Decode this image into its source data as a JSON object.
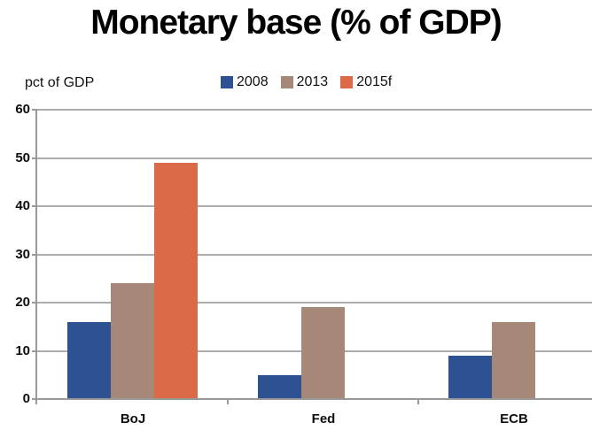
{
  "title": "Monetary base (% of GDP)",
  "axis_unit_label": "pct of GDP",
  "chart_data": {
    "type": "bar",
    "title": "Monetary base (% of GDP)",
    "ylabel": "pct of GDP",
    "categories": [
      "BoJ",
      "Fed",
      "ECB"
    ],
    "series": [
      {
        "name": "2008",
        "color": "#2E5291",
        "values": [
          16,
          5,
          9
        ]
      },
      {
        "name": "2013",
        "color": "#A68878",
        "values": [
          24,
          19,
          16
        ]
      },
      {
        "name": "2015f",
        "color": "#DB6A49",
        "values": [
          49,
          null,
          null
        ]
      }
    ],
    "ylim": [
      0,
      60
    ],
    "yticks": [
      0,
      10,
      20,
      30,
      40,
      50,
      60
    ],
    "grid": true,
    "legend_position": "top-center"
  },
  "colors": {
    "gridline": "#ADADAD",
    "axis": "#999999",
    "text": "#0D0D0D",
    "background": "#FFFFFF"
  }
}
